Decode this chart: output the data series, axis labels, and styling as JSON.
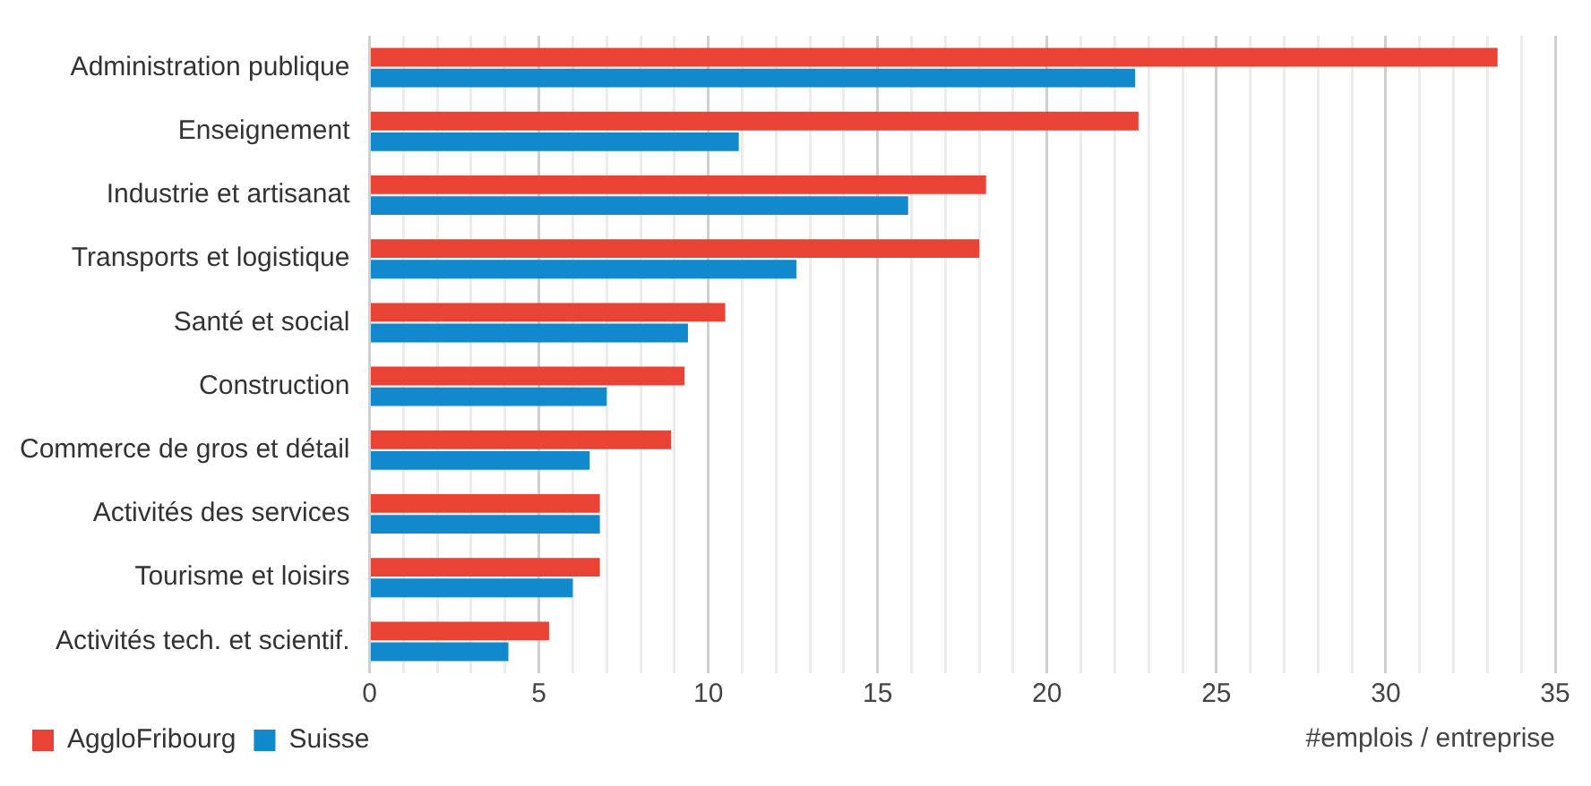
{
  "chart_data": {
    "type": "bar",
    "orientation": "horizontal",
    "xlabel": "#emplois / entreprise",
    "categories": [
      "Administration publique",
      "Enseignement",
      "Industrie et artisanat",
      "Transports et logistique",
      "Santé et social",
      "Construction",
      "Commerce de gros et détail",
      "Activités des services",
      "Tourisme et loisirs",
      "Activités tech. et scientif."
    ],
    "series": [
      {
        "name": "AggloFribourg",
        "color": "#e94335",
        "values": [
          33.3,
          22.7,
          18.2,
          18.0,
          10.5,
          9.3,
          8.9,
          6.8,
          6.8,
          5.3
        ]
      },
      {
        "name": "Suisse",
        "color": "#1289cc",
        "values": [
          22.6,
          10.9,
          15.9,
          12.6,
          9.4,
          7.0,
          6.5,
          6.8,
          6.0,
          4.1
        ]
      }
    ],
    "xlim": [
      0,
      35
    ],
    "xticks": [
      0,
      {
        "value": 1,
        "label": null
      },
      {
        "value": 2,
        "label": null
      },
      {
        "value": 3,
        "label": null
      },
      {
        "value": 4,
        "label": null
      },
      5,
      {
        "value": 6,
        "label": null
      },
      {
        "value": 7,
        "label": null
      },
      {
        "value": 8,
        "label": null
      },
      {
        "value": 9,
        "label": null
      },
      10,
      {
        "value": 11,
        "label": null
      },
      {
        "value": 12,
        "label": null
      },
      {
        "value": 13,
        "label": null
      },
      {
        "value": 14,
        "label": null
      },
      15,
      {
        "value": 16,
        "label": null
      },
      {
        "value": 17,
        "label": null
      },
      {
        "value": 18,
        "label": null
      },
      {
        "value": 19,
        "label": null
      },
      20,
      {
        "value": 21,
        "label": null
      },
      {
        "value": 22,
        "label": null
      },
      {
        "value": 23,
        "label": null
      },
      {
        "value": 24,
        "label": null
      },
      25,
      {
        "value": 26,
        "label": null
      },
      {
        "value": 27,
        "label": null
      },
      {
        "value": 28,
        "label": null
      },
      {
        "value": 29,
        "label": null
      },
      30,
      {
        "value": 31,
        "label": null
      },
      {
        "value": 32,
        "label": null
      },
      {
        "value": 33,
        "label": null
      },
      {
        "value": 34,
        "label": null
      },
      35
    ],
    "grid": "x",
    "legend": "bottom left"
  }
}
